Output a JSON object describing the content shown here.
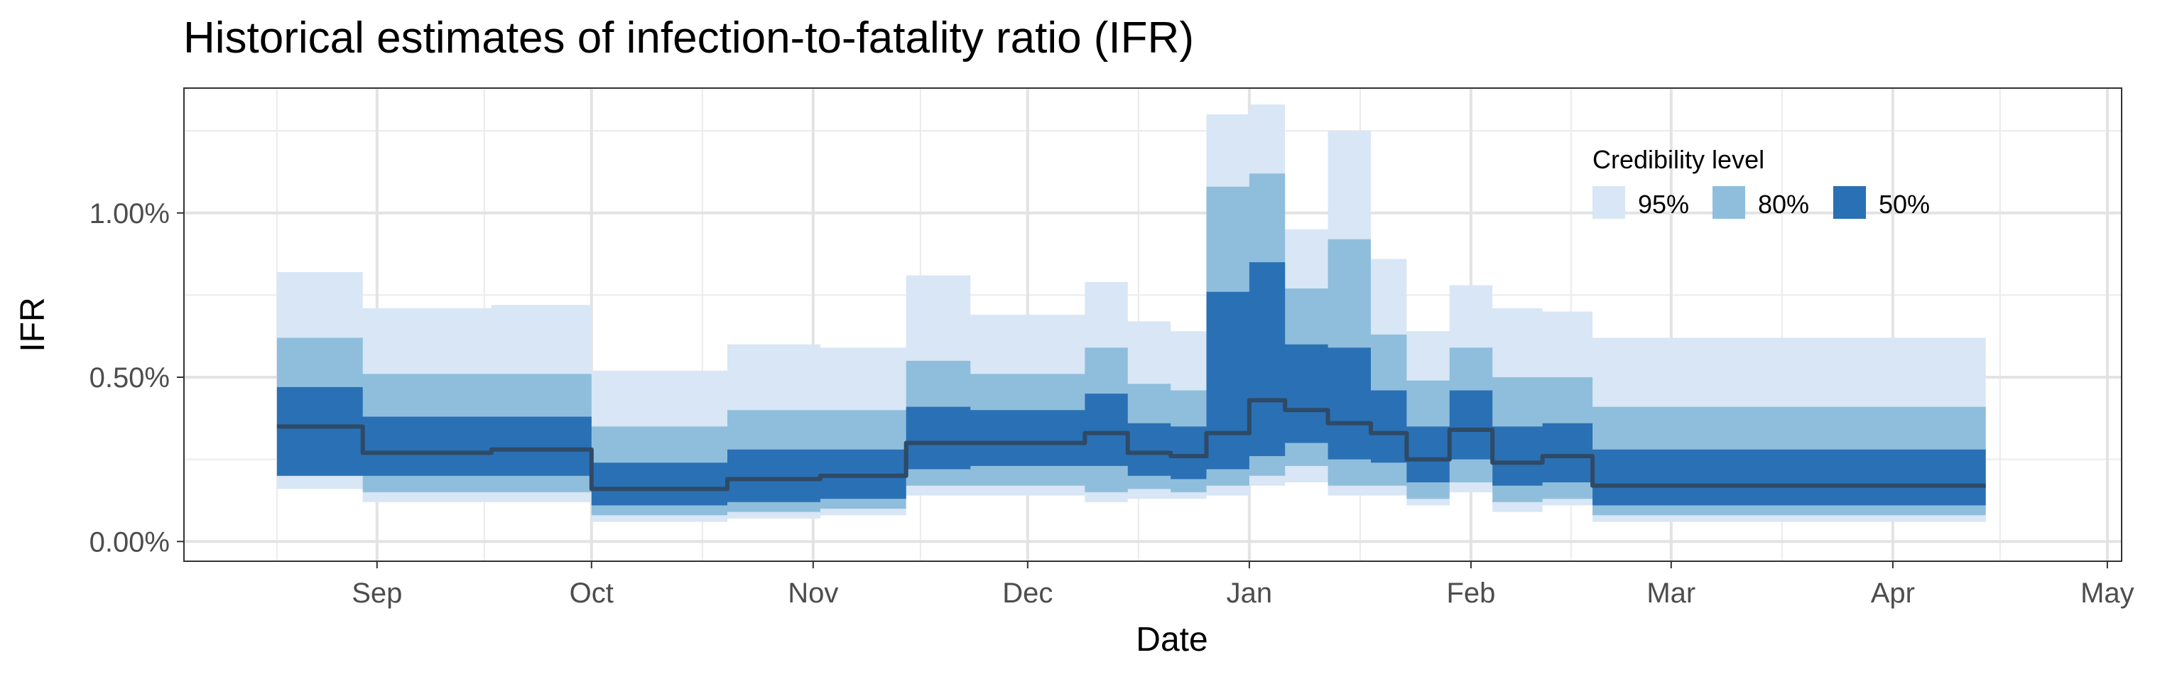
{
  "chart_data": {
    "type": "area",
    "title": "Historical estimates of infection-to-fatality ratio (IFR)",
    "xlabel": "Date",
    "ylabel": "IFR",
    "x_tick_labels": [
      "Sep",
      "Oct",
      "Nov",
      "Dec",
      "Jan",
      "Feb",
      "Mar",
      "Apr",
      "May"
    ],
    "y_tick_labels": [
      "0.00%",
      "0.50%",
      "1.00%"
    ],
    "y_ticks": [
      0.0,
      0.5,
      1.0
    ],
    "y_unit": "percent",
    "ylim": [
      -0.06,
      1.38
    ],
    "xlim": [
      -27,
      244
    ],
    "x_unit": "days since Sep 1",
    "grid": true,
    "legend": {
      "title": "Credibility level",
      "position": "top-right",
      "items": [
        {
          "label": "95%",
          "color": "#d8e6f5"
        },
        {
          "label": "80%",
          "color": "#8fbedc"
        },
        {
          "label": "50%",
          "color": "#2a70b4"
        }
      ]
    },
    "median_color": "#2e4a66",
    "steps": [
      {
        "x0": -14,
        "x1": -2,
        "median": 0.35,
        "b50": [
          0.2,
          0.47
        ],
        "b80": [
          0.2,
          0.62
        ],
        "b95": [
          0.16,
          0.82
        ]
      },
      {
        "x0": -2,
        "x1": 16,
        "median": 0.27,
        "b50": [
          0.2,
          0.38
        ],
        "b80": [
          0.15,
          0.51
        ],
        "b95": [
          0.12,
          0.71
        ]
      },
      {
        "x0": 16,
        "x1": 30,
        "median": 0.28,
        "b50": [
          0.2,
          0.38
        ],
        "b80": [
          0.15,
          0.51
        ],
        "b95": [
          0.12,
          0.72
        ]
      },
      {
        "x0": 30,
        "x1": 49,
        "median": 0.16,
        "b50": [
          0.11,
          0.24
        ],
        "b80": [
          0.08,
          0.35
        ],
        "b95": [
          0.06,
          0.52
        ]
      },
      {
        "x0": 49,
        "x1": 62,
        "median": 0.19,
        "b50": [
          0.12,
          0.28
        ],
        "b80": [
          0.09,
          0.4
        ],
        "b95": [
          0.07,
          0.6
        ]
      },
      {
        "x0": 62,
        "x1": 74,
        "median": 0.2,
        "b50": [
          0.13,
          0.28
        ],
        "b80": [
          0.1,
          0.4
        ],
        "b95": [
          0.08,
          0.59
        ]
      },
      {
        "x0": 74,
        "x1": 83,
        "median": 0.3,
        "b50": [
          0.22,
          0.41
        ],
        "b80": [
          0.17,
          0.55
        ],
        "b95": [
          0.14,
          0.81
        ]
      },
      {
        "x0": 83,
        "x1": 99,
        "median": 0.3,
        "b50": [
          0.23,
          0.4
        ],
        "b80": [
          0.17,
          0.51
        ],
        "b95": [
          0.14,
          0.69
        ]
      },
      {
        "x0": 99,
        "x1": 105,
        "median": 0.33,
        "b50": [
          0.23,
          0.45
        ],
        "b80": [
          0.15,
          0.59
        ],
        "b95": [
          0.12,
          0.79
        ]
      },
      {
        "x0": 105,
        "x1": 111,
        "median": 0.27,
        "b50": [
          0.2,
          0.36
        ],
        "b80": [
          0.16,
          0.48
        ],
        "b95": [
          0.13,
          0.67
        ]
      },
      {
        "x0": 111,
        "x1": 116,
        "median": 0.26,
        "b50": [
          0.19,
          0.35
        ],
        "b80": [
          0.15,
          0.46
        ],
        "b95": [
          0.13,
          0.64
        ]
      },
      {
        "x0": 116,
        "x1": 122,
        "median": 0.33,
        "b50": [
          0.22,
          0.76
        ],
        "b80": [
          0.17,
          1.08
        ],
        "b95": [
          0.14,
          1.3
        ]
      },
      {
        "x0": 122,
        "x1": 127,
        "median": 0.43,
        "b50": [
          0.26,
          0.85
        ],
        "b80": [
          0.2,
          1.12
        ],
        "b95": [
          0.17,
          1.33
        ]
      },
      {
        "x0": 127,
        "x1": 133,
        "median": 0.4,
        "b50": [
          0.3,
          0.6
        ],
        "b80": [
          0.23,
          0.77
        ],
        "b95": [
          0.18,
          0.95
        ]
      },
      {
        "x0": 133,
        "x1": 139,
        "median": 0.36,
        "b50": [
          0.25,
          0.59
        ],
        "b80": [
          0.17,
          0.92
        ],
        "b95": [
          0.14,
          1.25
        ]
      },
      {
        "x0": 139,
        "x1": 144,
        "median": 0.33,
        "b50": [
          0.24,
          0.46
        ],
        "b80": [
          0.17,
          0.63
        ],
        "b95": [
          0.14,
          0.86
        ]
      },
      {
        "x0": 144,
        "x1": 150,
        "median": 0.25,
        "b50": [
          0.18,
          0.35
        ],
        "b80": [
          0.13,
          0.49
        ],
        "b95": [
          0.11,
          0.64
        ]
      },
      {
        "x0": 150,
        "x1": 156,
        "median": 0.34,
        "b50": [
          0.25,
          0.46
        ],
        "b80": [
          0.18,
          0.59
        ],
        "b95": [
          0.15,
          0.78
        ]
      },
      {
        "x0": 156,
        "x1": 163,
        "median": 0.24,
        "b50": [
          0.17,
          0.35
        ],
        "b80": [
          0.12,
          0.5
        ],
        "b95": [
          0.09,
          0.71
        ]
      },
      {
        "x0": 163,
        "x1": 170,
        "median": 0.26,
        "b50": [
          0.18,
          0.36
        ],
        "b80": [
          0.13,
          0.5
        ],
        "b95": [
          0.11,
          0.7
        ]
      },
      {
        "x0": 170,
        "x1": 225,
        "median": 0.17,
        "b50": [
          0.11,
          0.28
        ],
        "b80": [
          0.08,
          0.41
        ],
        "b95": [
          0.06,
          0.62
        ]
      }
    ]
  }
}
